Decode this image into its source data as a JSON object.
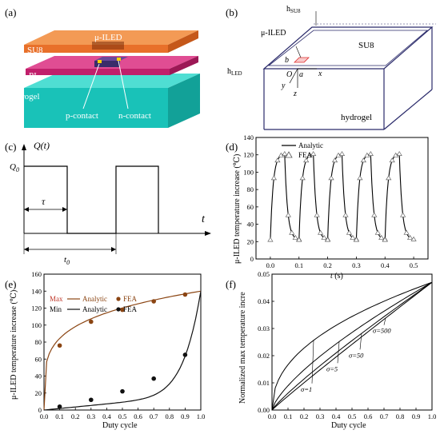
{
  "panels": {
    "a": {
      "tag": "(a)",
      "labels": {
        "su8": "SU8",
        "uiled": "μ-ILED",
        "pi": "PI",
        "hydrogel": "Hydrogel",
        "pcontact": "p-contact",
        "ncontact": "n-contact"
      },
      "colors": {
        "su8": "#e8702a",
        "pi": "#d4257a",
        "hydrogel": "#19c2b8",
        "dark": "#333333"
      }
    },
    "b": {
      "tag": "(b)",
      "labels": {
        "hsu8": "h",
        "hsu8_sub": "SU8",
        "uiled": "μ-ILED",
        "su8": "SU8",
        "hled": "h",
        "hled_sub": "LED",
        "b": "b",
        "a": "a",
        "O": "O",
        "x": "x",
        "y": "y",
        "z": "z",
        "hydrogel": "hydrogel"
      }
    },
    "c": {
      "tag": "(c)",
      "labels": {
        "q": "Q(t)",
        "q0": "Q",
        "q0_sub": "0",
        "tau": "τ",
        "t": "t",
        "t0": "t",
        "t0_sub": "0"
      }
    },
    "d": {
      "tag": "(d)",
      "legend": {
        "analytic": "Analytic",
        "fea": "FEA"
      },
      "ylabel": "μ-ILED temperature increase (℃)",
      "xlabel_t": "t",
      "xlabel_unit": " (s)"
    },
    "e": {
      "tag": "(e)",
      "legend": {
        "max": "Max",
        "min": "Min",
        "analytic": "Analytic",
        "fea": "FEA"
      },
      "ylabel": "μ-ILED temperature increase (℃)",
      "xlabel": "Duty cycle"
    },
    "f": {
      "tag": "(f)",
      "ylabel": "Normalized max temperature incre",
      "xlabel": "Duty cycle",
      "sigma_labels": [
        "σ=1",
        "σ=5",
        "σ=50",
        "σ=500"
      ]
    }
  },
  "chart_data": [
    {
      "panel": "d",
      "type": "line",
      "xlim": [
        -0.05,
        0.55
      ],
      "ylim": [
        0,
        140
      ],
      "xticks": [
        "0.0",
        "0.1",
        "0.2",
        "0.3",
        "0.4",
        "0.5"
      ],
      "yticks": [
        "0",
        "20",
        "40",
        "60",
        "80",
        "100",
        "120",
        "140"
      ],
      "pulses": [
        0.0,
        0.1,
        0.2,
        0.3,
        0.4
      ],
      "pulse_on": 0.05,
      "peak": 121,
      "base": 22,
      "series": [
        {
          "name": "Analytic",
          "kind": "line"
        },
        {
          "name": "FEA",
          "kind": "triangle"
        }
      ]
    },
    {
      "panel": "e",
      "type": "line",
      "xlim": [
        0.0,
        1.0
      ],
      "ylim": [
        0,
        160
      ],
      "xticks": [
        "0.0",
        "0.1",
        "0.2",
        "0.3",
        "0.4",
        "0.5",
        "0.6",
        "0.7",
        "0.8",
        "0.9",
        "1.0"
      ],
      "yticks": [
        "0",
        "20",
        "40",
        "60",
        "80",
        "100",
        "120",
        "140",
        "160"
      ],
      "series": [
        {
          "name": "Max FEA",
          "color": "#8b4513",
          "x": [
            0.1,
            0.3,
            0.5,
            0.7,
            0.9
          ],
          "y": [
            76,
            104,
            118,
            128,
            136
          ]
        },
        {
          "name": "Min FEA",
          "color": "#111111",
          "x": [
            0.1,
            0.3,
            0.5,
            0.7,
            0.9
          ],
          "y": [
            4,
            12,
            22,
            37,
            65
          ]
        }
      ]
    },
    {
      "panel": "f",
      "type": "line",
      "xlim": [
        0.0,
        1.0
      ],
      "ylim": [
        0.0,
        0.05
      ],
      "xticks": [
        "0.0",
        "0.1",
        "0.2",
        "0.3",
        "0.4",
        "0.5",
        "0.6",
        "0.7",
        "0.8",
        "0.9",
        "1.0"
      ],
      "yticks": [
        "0.00",
        "0.01",
        "0.02",
        "0.03",
        "0.04",
        "0.05"
      ],
      "end_value": 0.047,
      "series": [
        {
          "name": "σ=1",
          "exponent": 0.45
        },
        {
          "name": "σ=5",
          "exponent": 0.72
        },
        {
          "name": "σ=50",
          "exponent": 0.88
        },
        {
          "name": "σ=500",
          "exponent": 0.96
        }
      ]
    }
  ]
}
